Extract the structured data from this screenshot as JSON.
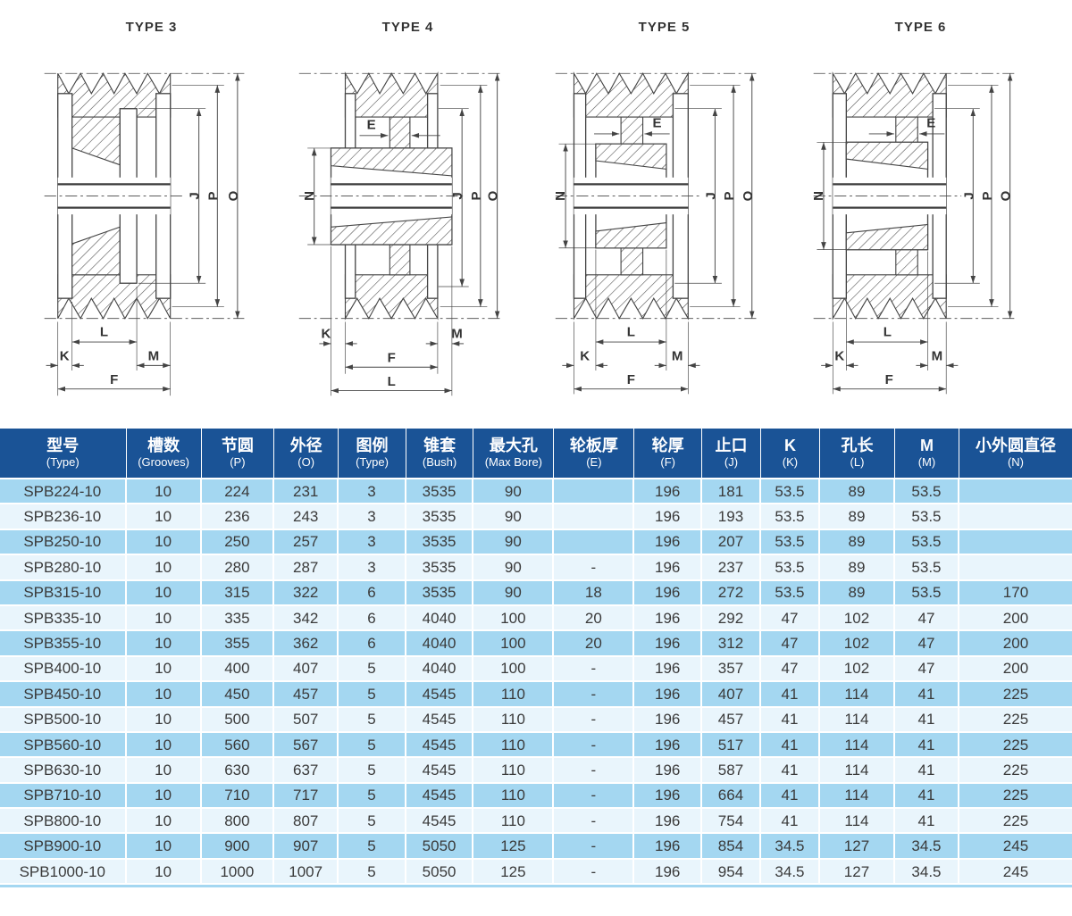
{
  "figures": [
    {
      "title": "TYPE 3",
      "dims": {
        "J": "J",
        "P": "P",
        "O": "O",
        "L": "L",
        "K": "K",
        "M": "M",
        "F": "F"
      }
    },
    {
      "title": "TYPE 4",
      "dims": {
        "E": "E",
        "N": "N",
        "J": "J",
        "P": "P",
        "O": "O",
        "K": "K",
        "M": "M",
        "F": "F",
        "L": "L"
      }
    },
    {
      "title": "TYPE 5",
      "dims": {
        "E": "E",
        "N": "N",
        "J": "J",
        "P": "P",
        "O": "O",
        "L": "L",
        "K": "K",
        "M": "M",
        "F": "F"
      }
    },
    {
      "title": "TYPE 6",
      "dims": {
        "E": "E",
        "N": "N",
        "J": "J",
        "P": "P",
        "O": "O",
        "L": "L",
        "K": "K",
        "M": "M",
        "F": "F"
      }
    }
  ],
  "table": {
    "columns": [
      {
        "zh": "型号",
        "en": "(Type)"
      },
      {
        "zh": "槽数",
        "en": "(Grooves)"
      },
      {
        "zh": "节圆",
        "en": "(P)"
      },
      {
        "zh": "外径",
        "en": "(O)"
      },
      {
        "zh": "图例",
        "en": "(Type)"
      },
      {
        "zh": "锥套",
        "en": "(Bush)"
      },
      {
        "zh": "最大孔",
        "en": "(Max Bore)"
      },
      {
        "zh": "轮板厚",
        "en": "(E)"
      },
      {
        "zh": "轮厚",
        "en": "(F)"
      },
      {
        "zh": "止口",
        "en": "(J)"
      },
      {
        "zh": "K",
        "en": "(K)"
      },
      {
        "zh": "孔长",
        "en": "(L)"
      },
      {
        "zh": "M",
        "en": "(M)"
      },
      {
        "zh": "小外圆直径",
        "en": "(N)"
      }
    ],
    "rows": [
      [
        "SPB224-10",
        "10",
        "224",
        "231",
        "3",
        "3535",
        "90",
        "",
        "196",
        "181",
        "53.5",
        "89",
        "53.5",
        ""
      ],
      [
        "SPB236-10",
        "10",
        "236",
        "243",
        "3",
        "3535",
        "90",
        "",
        "196",
        "193",
        "53.5",
        "89",
        "53.5",
        ""
      ],
      [
        "SPB250-10",
        "10",
        "250",
        "257",
        "3",
        "3535",
        "90",
        "",
        "196",
        "207",
        "53.5",
        "89",
        "53.5",
        ""
      ],
      [
        "SPB280-10",
        "10",
        "280",
        "287",
        "3",
        "3535",
        "90",
        "-",
        "196",
        "237",
        "53.5",
        "89",
        "53.5",
        ""
      ],
      [
        "SPB315-10",
        "10",
        "315",
        "322",
        "6",
        "3535",
        "90",
        "18",
        "196",
        "272",
        "53.5",
        "89",
        "53.5",
        "170"
      ],
      [
        "SPB335-10",
        "10",
        "335",
        "342",
        "6",
        "4040",
        "100",
        "20",
        "196",
        "292",
        "47",
        "102",
        "47",
        "200"
      ],
      [
        "SPB355-10",
        "10",
        "355",
        "362",
        "6",
        "4040",
        "100",
        "20",
        "196",
        "312",
        "47",
        "102",
        "47",
        "200"
      ],
      [
        "SPB400-10",
        "10",
        "400",
        "407",
        "5",
        "4040",
        "100",
        "-",
        "196",
        "357",
        "47",
        "102",
        "47",
        "200"
      ],
      [
        "SPB450-10",
        "10",
        "450",
        "457",
        "5",
        "4545",
        "110",
        "-",
        "196",
        "407",
        "41",
        "114",
        "41",
        "225"
      ],
      [
        "SPB500-10",
        "10",
        "500",
        "507",
        "5",
        "4545",
        "110",
        "-",
        "196",
        "457",
        "41",
        "114",
        "41",
        "225"
      ],
      [
        "SPB560-10",
        "10",
        "560",
        "567",
        "5",
        "4545",
        "110",
        "-",
        "196",
        "517",
        "41",
        "114",
        "41",
        "225"
      ],
      [
        "SPB630-10",
        "10",
        "630",
        "637",
        "5",
        "4545",
        "110",
        "-",
        "196",
        "587",
        "41",
        "114",
        "41",
        "225"
      ],
      [
        "SPB710-10",
        "10",
        "710",
        "717",
        "5",
        "4545",
        "110",
        "-",
        "196",
        "664",
        "41",
        "114",
        "41",
        "225"
      ],
      [
        "SPB800-10",
        "10",
        "800",
        "807",
        "5",
        "4545",
        "110",
        "-",
        "196",
        "754",
        "41",
        "114",
        "41",
        "225"
      ],
      [
        "SPB900-10",
        "10",
        "900",
        "907",
        "5",
        "5050",
        "125",
        "-",
        "196",
        "854",
        "34.5",
        "127",
        "34.5",
        "245"
      ],
      [
        "SPB1000-10",
        "10",
        "1000",
        "1007",
        "5",
        "5050",
        "125",
        "-",
        "196",
        "954",
        "34.5",
        "127",
        "34.5",
        "245"
      ]
    ],
    "col_widths_pct": [
      11.8,
      7.0,
      6.8,
      6.0,
      6.3,
      6.3,
      7.5,
      7.5,
      6.3,
      5.5,
      5.5,
      7.0,
      6.0,
      10.5
    ]
  },
  "colors": {
    "header_bg": "#1a5396",
    "row_odd": "#a4d7f1",
    "row_even": "#e9f5fc",
    "header_text": "#ffffff",
    "cell_text": "#3a3a3a",
    "drawing_line": "#454545"
  }
}
